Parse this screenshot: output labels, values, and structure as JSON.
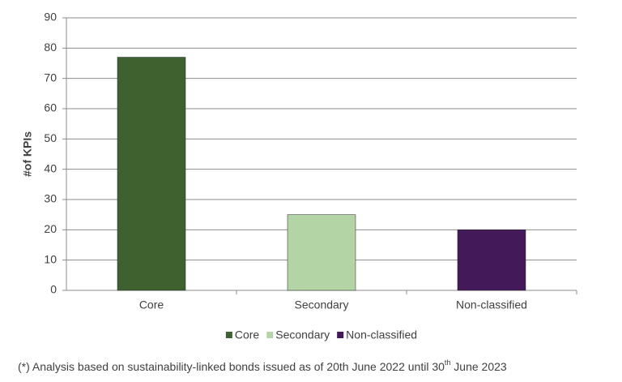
{
  "chart_data": {
    "type": "bar",
    "categories": [
      "Core",
      "Secondary",
      "Non-classified"
    ],
    "values": [
      77,
      25,
      20
    ],
    "colors": [
      "#3e6130",
      "#b3d4a5",
      "#43195a"
    ],
    "y_label": "#of KPIs",
    "ylim": [
      0,
      90
    ],
    "yticks": [
      0,
      10,
      20,
      30,
      40,
      50,
      60,
      70,
      80,
      90
    ],
    "grid": true,
    "legend": "bottom",
    "footnote": [
      "(*) Analysis based on sustainability-linked bonds issued as of 20th June 2022 until 30",
      "th",
      " June 2023"
    ]
  }
}
